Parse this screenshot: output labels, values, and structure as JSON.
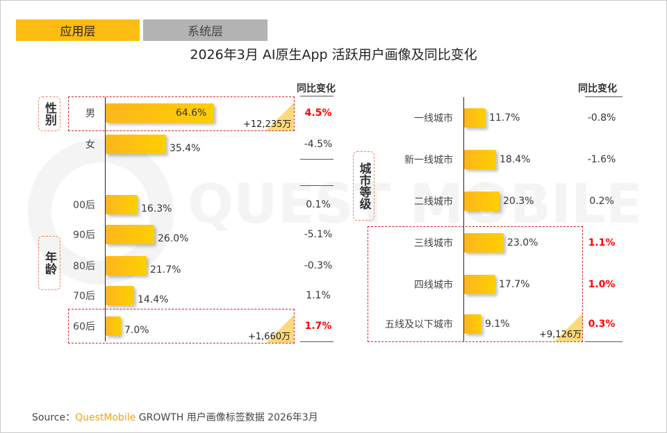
{
  "tabs": [
    {
      "label": "应用层",
      "active": true,
      "color": "#fcbc12"
    },
    {
      "label": "系统层",
      "active": false,
      "color": "#b3b3b3"
    }
  ],
  "watermark": "QUEST MOBILE",
  "chart_data": [
    {
      "type": "bar",
      "orientation": "horizontal",
      "title": "2026年3月 AI原生App 活跃用户画像及同比变化",
      "change_header": "同比变化",
      "groups": [
        {
          "name": "性别",
          "categories": [
            "男",
            "女"
          ],
          "values": [
            64.6,
            35.4
          ],
          "labels": [
            "64.6%",
            "35.4%"
          ],
          "changes": [
            "4.5%",
            "-4.5%"
          ],
          "highlight": [
            true,
            false
          ],
          "increment": "+12,235万"
        },
        {
          "name": "年龄",
          "categories": [
            "00后",
            "90后",
            "80后",
            "70后",
            "60后"
          ],
          "values": [
            16.3,
            26.0,
            21.7,
            14.4,
            7.0
          ],
          "labels": [
            "16.3%",
            "26.0%",
            "21.7%",
            "14.4%",
            "7.0%"
          ],
          "changes": [
            "0.1%",
            "-5.1%",
            "-0.3%",
            "1.1%",
            "1.7%"
          ],
          "highlight": [
            false,
            false,
            false,
            false,
            true
          ],
          "increment": "+1,660万"
        }
      ]
    },
    {
      "type": "bar",
      "orientation": "horizontal",
      "change_header": "同比变化",
      "groups": [
        {
          "name": "城市等级",
          "categories": [
            "一线城市",
            "新一线城市",
            "二线城市",
            "三线城市",
            "四线城市",
            "五线及以下城市"
          ],
          "values": [
            11.7,
            18.4,
            20.3,
            23.0,
            17.7,
            9.1
          ],
          "labels": [
            "11.7%",
            "18.4%",
            "20.3%",
            "23.0%",
            "17.7%",
            "9.1%"
          ],
          "changes": [
            "-0.8%",
            "-1.6%",
            "0.2%",
            "1.1%",
            "1.0%",
            "0.3%"
          ],
          "highlight": [
            false,
            false,
            false,
            true,
            true,
            true
          ],
          "increment": "+9,126万"
        }
      ]
    }
  ],
  "source": {
    "prefix": "Source：",
    "brand": "QuestMobile",
    "text": " GROWTH 用户画像标签数据 2026年3月"
  }
}
